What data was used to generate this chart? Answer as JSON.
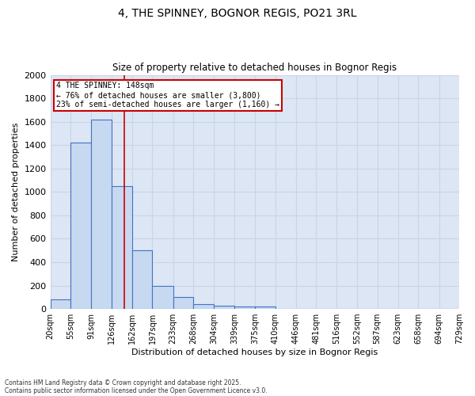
{
  "title1": "4, THE SPINNEY, BOGNOR REGIS, PO21 3RL",
  "title2": "Size of property relative to detached houses in Bognor Regis",
  "xlabel": "Distribution of detached houses by size in Bognor Regis",
  "ylabel": "Number of detached properties",
  "bin_edges": [
    20,
    55,
    91,
    126,
    162,
    197,
    233,
    268,
    304,
    339,
    375,
    410,
    446,
    481,
    516,
    552,
    587,
    623,
    658,
    694,
    729
  ],
  "bar_heights": [
    80,
    1420,
    1620,
    1050,
    500,
    200,
    100,
    40,
    30,
    20,
    20,
    0,
    0,
    0,
    0,
    0,
    0,
    0,
    0,
    0
  ],
  "bar_color": "#c6d9f0",
  "bar_edgecolor": "#4472c4",
  "bar_linewidth": 0.8,
  "vline_x": 148,
  "vline_color": "#cc0000",
  "vline_lw": 1.2,
  "ylim": [
    0,
    2000
  ],
  "yticks": [
    0,
    200,
    400,
    600,
    800,
    1000,
    1200,
    1400,
    1600,
    1800,
    2000
  ],
  "annotation_title": "4 THE SPINNEY: 148sqm",
  "annotation_line1": "← 76% of detached houses are smaller (3,800)",
  "annotation_line2": "23% of semi-detached houses are larger (1,160) →",
  "annotation_box_color": "#cc0000",
  "annotation_bg": "#ffffff",
  "grid_color": "#c8d4e8",
  "background_color": "#dce6f5",
  "footer1": "Contains HM Land Registry data © Crown copyright and database right 2025.",
  "footer2": "Contains public sector information licensed under the Open Government Licence v3.0."
}
